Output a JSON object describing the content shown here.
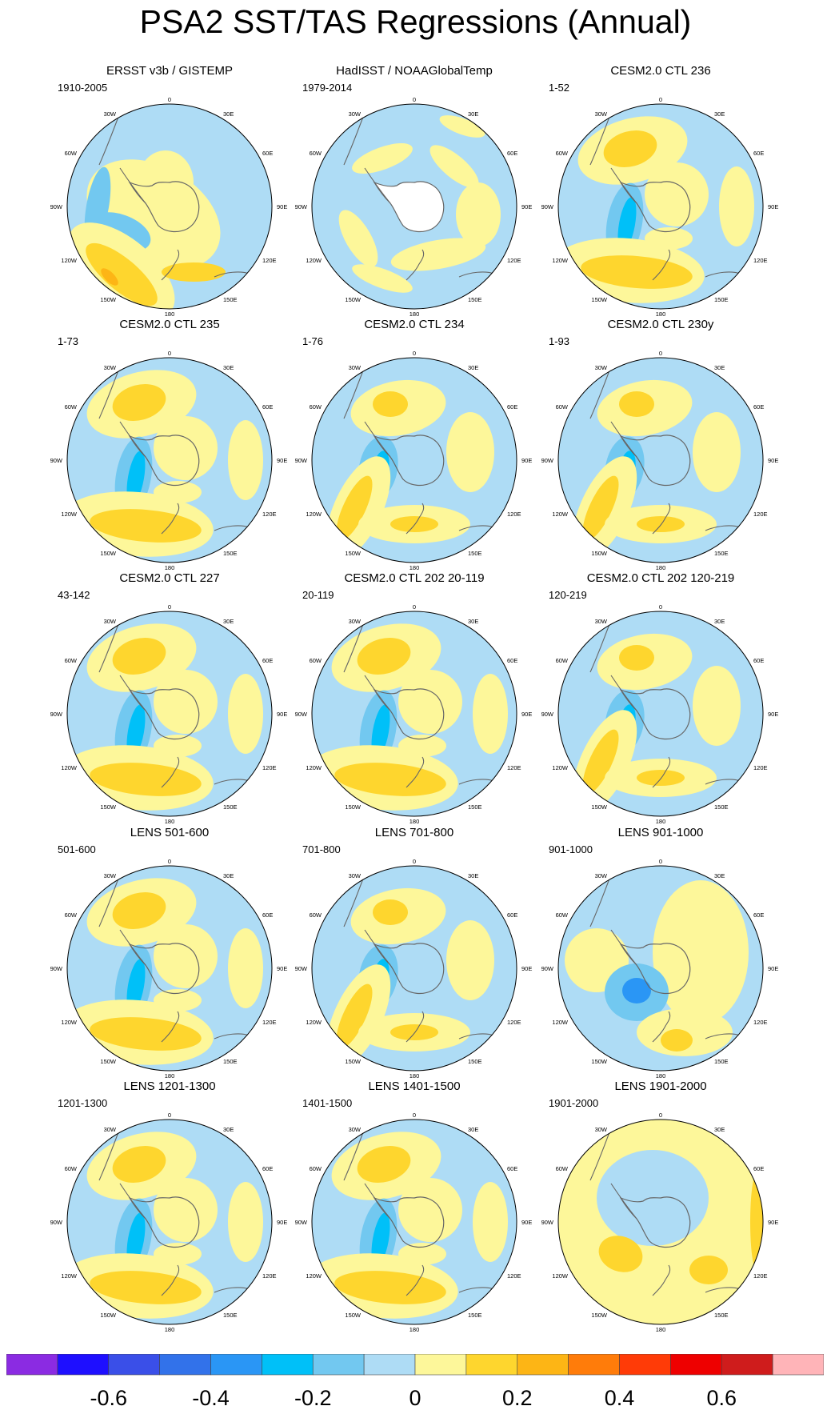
{
  "title": "PSA2 SST/TAS Regressions (Annual)",
  "panels": [
    {
      "title": "ERSST v3b / GISTEMP",
      "period": "1910-2005",
      "pattern": "obs1"
    },
    {
      "title": "HadISST / NOAAGlobalTemp",
      "period": "1979-2014",
      "pattern": "obs2"
    },
    {
      "title": "CESM2.0 CTL 236",
      "period": "1-52",
      "pattern": "model_a"
    },
    {
      "title": "CESM2.0 CTL 235",
      "period": "1-73",
      "pattern": "model_a"
    },
    {
      "title": "CESM2.0 CTL 234",
      "period": "1-76",
      "pattern": "model_b"
    },
    {
      "title": "CESM2.0 CTL 230y",
      "period": "1-93",
      "pattern": "model_b"
    },
    {
      "title": "CESM2.0 CTL 227",
      "period": "43-142",
      "pattern": "model_a"
    },
    {
      "title": "CESM2.0 CTL 202 20-119",
      "period": "20-119",
      "pattern": "model_a"
    },
    {
      "title": "CESM2.0 CTL 202 120-219",
      "period": "120-219",
      "pattern": "model_b"
    },
    {
      "title": "LENS 501-600",
      "period": "501-600",
      "pattern": "model_a"
    },
    {
      "title": "LENS 701-800",
      "period": "701-800",
      "pattern": "model_b"
    },
    {
      "title": "LENS 901-1000",
      "period": "901-1000",
      "pattern": "model_c"
    },
    {
      "title": "LENS 1201-1300",
      "period": "1201-1300",
      "pattern": "model_a"
    },
    {
      "title": "LENS 1401-1500",
      "period": "1401-1500",
      "pattern": "model_a"
    },
    {
      "title": "LENS 1901-2000",
      "period": "1901-2000",
      "pattern": "model_d"
    }
  ],
  "longitude_labels": [
    "0",
    "30E",
    "60E",
    "90E",
    "120E",
    "150E",
    "180",
    "150W",
    "120W",
    "90W",
    "60W",
    "30W"
  ],
  "colorbar": {
    "colors": [
      "#8b2be2",
      "#1e0fff",
      "#3a4fe8",
      "#3272ea",
      "#2a96f5",
      "#00c0f8",
      "#72c8f0",
      "#aedcf5",
      "#fdf79a",
      "#fed62e",
      "#fdb515",
      "#ff7c0a",
      "#ff3b07",
      "#ee0000",
      "#cf1c1c",
      "#ffb4b8"
    ],
    "labels": [
      "-0.6",
      "-0.4",
      "-0.2",
      "0",
      "0.2",
      "0.4",
      "0.6"
    ]
  }
}
